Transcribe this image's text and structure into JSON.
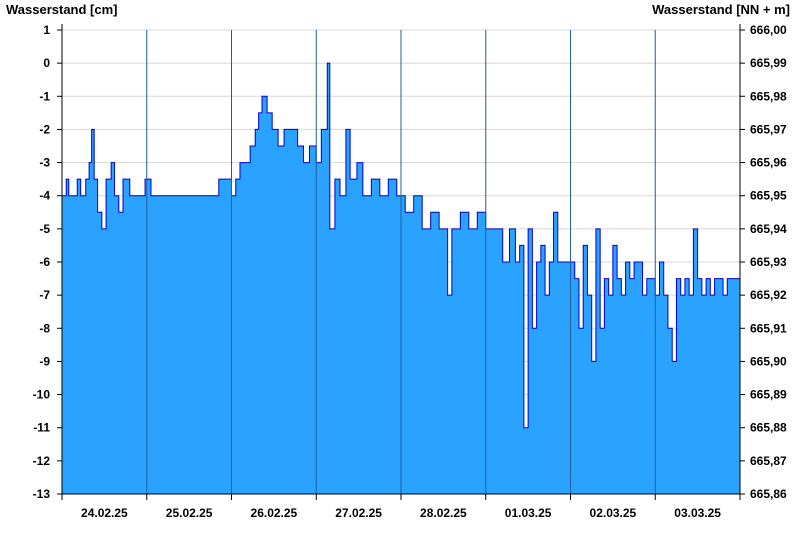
{
  "chart_data": {
    "type": "area",
    "ylabel_left": "Wasserstand [cm]",
    "ylabel_right": "Wasserstand [NN + m]",
    "ylim": [
      -13,
      1
    ],
    "y_ticks_left": [
      "1",
      "0",
      "-1",
      "-2",
      "-3",
      "-4",
      "-5",
      "-6",
      "-7",
      "-8",
      "-9",
      "-10",
      "-11",
      "-12",
      "-13"
    ],
    "y_ticks_right": [
      "666,00",
      "665,99",
      "665,98",
      "665,97",
      "665,96",
      "665,95",
      "665,94",
      "665,93",
      "665,92",
      "665,91",
      "665,90",
      "665,89",
      "665,88",
      "665,87",
      "665,86"
    ],
    "x_ticks": [
      "24.02.25",
      "25.02.25",
      "26.02.25",
      "27.02.25",
      "28.02.25",
      "01.03.25",
      "02.03.25",
      "03.03.25"
    ],
    "xlim_days": [
      0,
      8
    ],
    "grid": true,
    "colors": {
      "area": "#29a3ff",
      "line": "#0000cc",
      "grid": "#d8d8d8",
      "day_line": "#1f5fa0"
    },
    "series": [
      {
        "values": [
          [
            0.0,
            -4
          ],
          [
            0.05,
            -3.5
          ],
          [
            0.08,
            -4
          ],
          [
            0.18,
            -3.5
          ],
          [
            0.22,
            -4
          ],
          [
            0.28,
            -3.5
          ],
          [
            0.32,
            -3
          ],
          [
            0.35,
            -2
          ],
          [
            0.38,
            -3.5
          ],
          [
            0.42,
            -4.5
          ],
          [
            0.47,
            -5
          ],
          [
            0.52,
            -3.5
          ],
          [
            0.58,
            -3
          ],
          [
            0.62,
            -4
          ],
          [
            0.67,
            -4.5
          ],
          [
            0.72,
            -3.5
          ],
          [
            0.8,
            -4
          ],
          [
            0.9,
            -4
          ],
          [
            0.98,
            -3.5
          ],
          [
            1.05,
            -4
          ],
          [
            1.2,
            -4
          ],
          [
            1.4,
            -4
          ],
          [
            1.6,
            -4
          ],
          [
            1.75,
            -4
          ],
          [
            1.85,
            -3.5
          ],
          [
            1.95,
            -3.5
          ],
          [
            2.0,
            -4
          ],
          [
            2.05,
            -3.5
          ],
          [
            2.1,
            -3
          ],
          [
            2.18,
            -3
          ],
          [
            2.22,
            -2.5
          ],
          [
            2.28,
            -2
          ],
          [
            2.32,
            -1.5
          ],
          [
            2.36,
            -1
          ],
          [
            2.42,
            -1.5
          ],
          [
            2.48,
            -2
          ],
          [
            2.55,
            -2.5
          ],
          [
            2.62,
            -2
          ],
          [
            2.7,
            -2
          ],
          [
            2.78,
            -2.5
          ],
          [
            2.85,
            -3
          ],
          [
            2.92,
            -2.5
          ],
          [
            3.0,
            -3
          ],
          [
            3.06,
            -2
          ],
          [
            3.1,
            -2
          ],
          [
            3.13,
            0
          ],
          [
            3.16,
            -5
          ],
          [
            3.22,
            -3.5
          ],
          [
            3.28,
            -4
          ],
          [
            3.35,
            -2
          ],
          [
            3.4,
            -3.5
          ],
          [
            3.48,
            -3
          ],
          [
            3.55,
            -4
          ],
          [
            3.65,
            -3.5
          ],
          [
            3.75,
            -4
          ],
          [
            3.85,
            -3.5
          ],
          [
            3.95,
            -4
          ],
          [
            4.05,
            -4.5
          ],
          [
            4.15,
            -4
          ],
          [
            4.25,
            -5
          ],
          [
            4.35,
            -4.5
          ],
          [
            4.45,
            -5
          ],
          [
            4.55,
            -7
          ],
          [
            4.6,
            -5
          ],
          [
            4.7,
            -4.5
          ],
          [
            4.8,
            -5
          ],
          [
            4.9,
            -4.5
          ],
          [
            5.0,
            -5
          ],
          [
            5.1,
            -5
          ],
          [
            5.2,
            -6
          ],
          [
            5.28,
            -5
          ],
          [
            5.35,
            -6
          ],
          [
            5.4,
            -5.5
          ],
          [
            5.45,
            -11
          ],
          [
            5.5,
            -5
          ],
          [
            5.55,
            -8
          ],
          [
            5.6,
            -6
          ],
          [
            5.65,
            -5.5
          ],
          [
            5.7,
            -7
          ],
          [
            5.75,
            -6
          ],
          [
            5.8,
            -4.5
          ],
          [
            5.85,
            -6
          ],
          [
            5.9,
            -6
          ],
          [
            5.95,
            -6
          ],
          [
            6.0,
            -6
          ],
          [
            6.05,
            -6.5
          ],
          [
            6.1,
            -8
          ],
          [
            6.15,
            -5.5
          ],
          [
            6.2,
            -7
          ],
          [
            6.25,
            -9
          ],
          [
            6.3,
            -5
          ],
          [
            6.35,
            -8
          ],
          [
            6.4,
            -6.5
          ],
          [
            6.45,
            -7
          ],
          [
            6.5,
            -5.5
          ],
          [
            6.55,
            -6.5
          ],
          [
            6.6,
            -7
          ],
          [
            6.65,
            -6
          ],
          [
            6.7,
            -6.5
          ],
          [
            6.75,
            -6
          ],
          [
            6.8,
            -6
          ],
          [
            6.85,
            -7
          ],
          [
            6.9,
            -6.5
          ],
          [
            6.95,
            -6.5
          ],
          [
            7.0,
            -7
          ],
          [
            7.05,
            -6
          ],
          [
            7.1,
            -7
          ],
          [
            7.15,
            -8
          ],
          [
            7.2,
            -9
          ],
          [
            7.25,
            -6.5
          ],
          [
            7.3,
            -7
          ],
          [
            7.35,
            -6.5
          ],
          [
            7.4,
            -7
          ],
          [
            7.45,
            -5
          ],
          [
            7.5,
            -6.5
          ],
          [
            7.55,
            -7
          ],
          [
            7.6,
            -6.5
          ],
          [
            7.65,
            -7
          ],
          [
            7.7,
            -6.5
          ],
          [
            7.75,
            -6.5
          ],
          [
            7.8,
            -7
          ],
          [
            7.85,
            -6.5
          ],
          [
            7.9,
            -6.5
          ],
          [
            8.0,
            -6.5
          ]
        ]
      }
    ]
  }
}
